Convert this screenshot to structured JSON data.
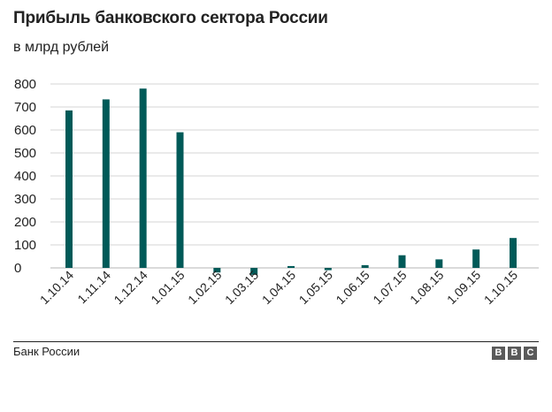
{
  "title": "Прибыль банковского сектора России",
  "subtitle": "в млрд рублей",
  "source": "Банк России",
  "logo": [
    "B",
    "B",
    "C"
  ],
  "colors": {
    "bar": "#005a58",
    "grid": "#d5d5d5",
    "text": "#222222",
    "logo": "#5a5a5a"
  },
  "chart_data": {
    "type": "bar",
    "title": "Прибыль банковского сектора России",
    "subtitle": "в млрд рублей",
    "xlabel": "",
    "ylabel": "",
    "categories": [
      "1.10.14",
      "1.11.14",
      "1.12.14",
      "1.01.15",
      "1.02.15",
      "1.03.15",
      "1.04.15",
      "1.05.15",
      "1.06.15",
      "1.07.15",
      "1.08.15",
      "1.09.15",
      "1.10.15"
    ],
    "values": [
      685,
      733,
      780,
      590,
      -20,
      -30,
      8,
      -10,
      12,
      55,
      37,
      80,
      130
    ],
    "ylim": [
      -30,
      800
    ],
    "yticks": [
      0,
      100,
      200,
      300,
      400,
      500,
      600,
      700,
      800
    ],
    "grid": true,
    "legend": "none"
  }
}
